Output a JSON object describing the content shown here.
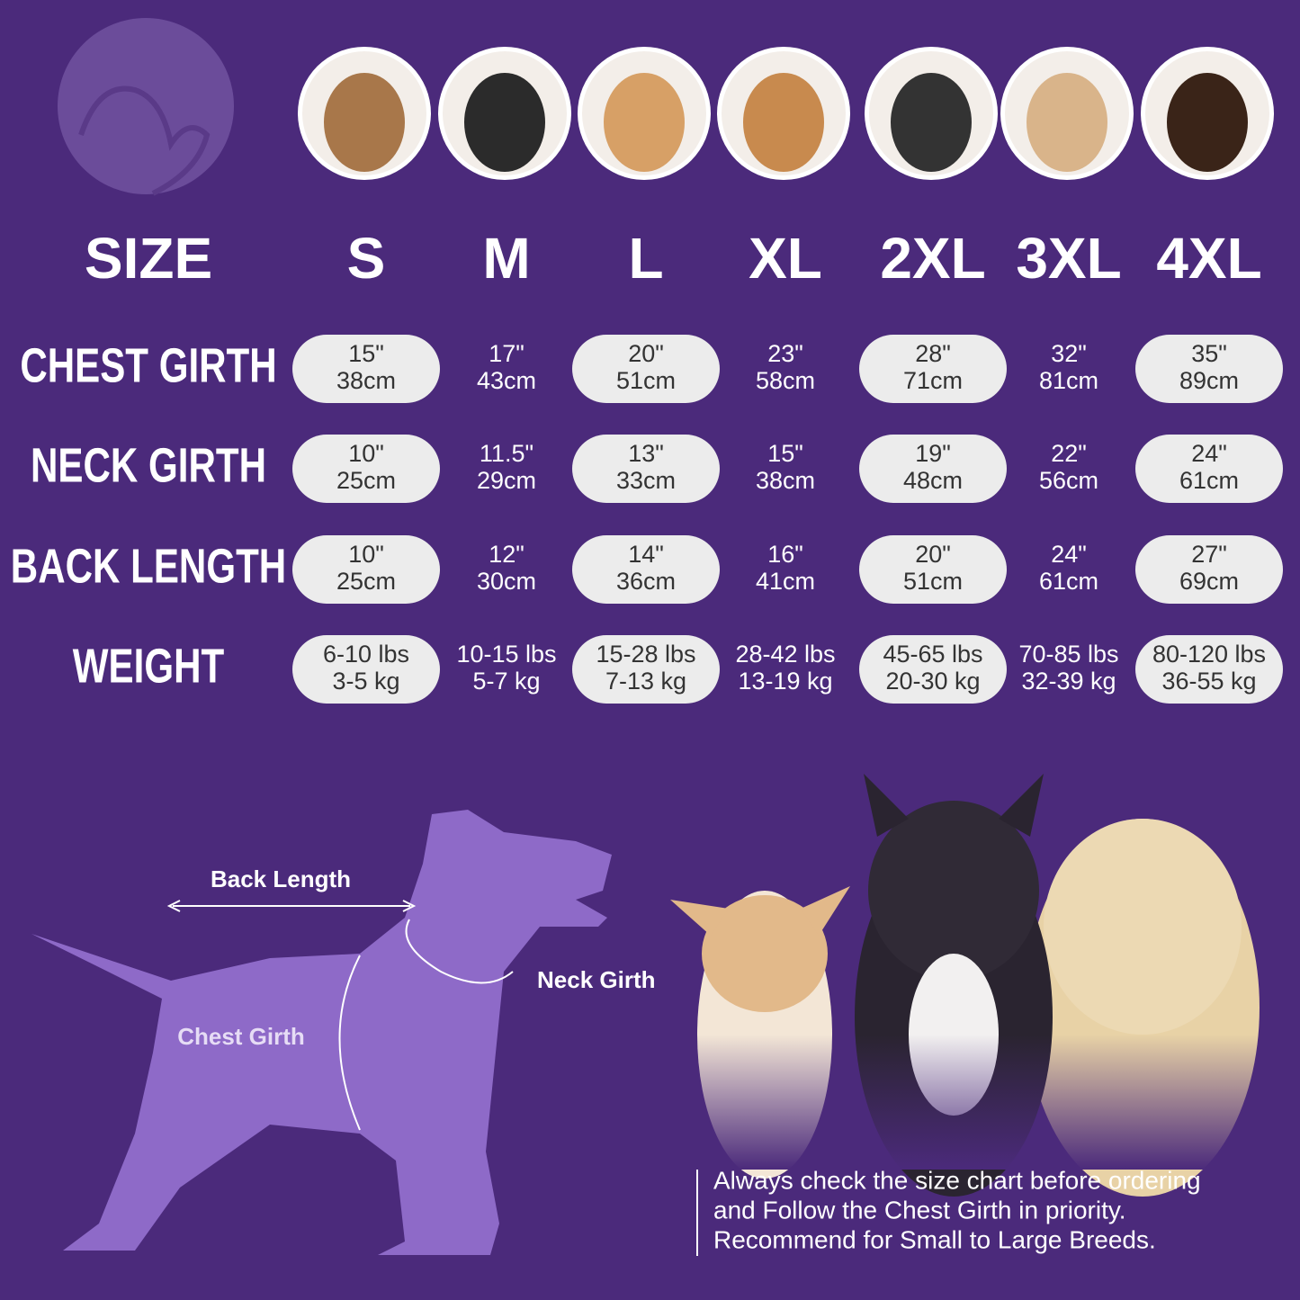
{
  "header": {
    "label": "SIZE",
    "sizes": [
      "S",
      "M",
      "L",
      "XL",
      "2XL",
      "3XL",
      "4XL"
    ]
  },
  "rows": [
    {
      "label": "CHEST GIRTH",
      "cells": [
        [
          "15\"",
          "38cm"
        ],
        [
          "17\"",
          "43cm"
        ],
        [
          "20\"",
          "51cm"
        ],
        [
          "23\"",
          "58cm"
        ],
        [
          "28\"",
          "71cm"
        ],
        [
          "32\"",
          "81cm"
        ],
        [
          "35\"",
          "89cm"
        ]
      ]
    },
    {
      "label": "NECK GIRTH",
      "cells": [
        [
          "10\"",
          "25cm"
        ],
        [
          "11.5\"",
          "29cm"
        ],
        [
          "13\"",
          "33cm"
        ],
        [
          "15\"",
          "38cm"
        ],
        [
          "19\"",
          "48cm"
        ],
        [
          "22\"",
          "56cm"
        ],
        [
          "24\"",
          "61cm"
        ]
      ]
    },
    {
      "label": "BACK LENGTH",
      "cells": [
        [
          "10\"",
          "25cm"
        ],
        [
          "12\"",
          "30cm"
        ],
        [
          "14\"",
          "36cm"
        ],
        [
          "16\"",
          "41cm"
        ],
        [
          "20\"",
          "51cm"
        ],
        [
          "24\"",
          "61cm"
        ],
        [
          "27\"",
          "69cm"
        ]
      ]
    },
    {
      "label": "WEIGHT",
      "cells": [
        [
          "6-10 lbs",
          "3-5 kg"
        ],
        [
          "10-15 lbs",
          "5-7 kg"
        ],
        [
          "15-28 lbs",
          "7-13 kg"
        ],
        [
          "28-42 lbs",
          "13-19 kg"
        ],
        [
          "45-65 lbs",
          "20-30 kg"
        ],
        [
          "70-85 lbs",
          "32-39 kg"
        ],
        [
          "80-120 lbs",
          "36-55 kg"
        ]
      ]
    }
  ],
  "diagram": {
    "back_length": "Back Length",
    "neck_girth": "Neck Girth",
    "chest_girth": "Chest Girth"
  },
  "note": {
    "lines": [
      "Always check the size chart before ordering",
      "and Follow the Chest Girth in priority.",
      "Recommend for Small to Large Breeds."
    ]
  }
}
